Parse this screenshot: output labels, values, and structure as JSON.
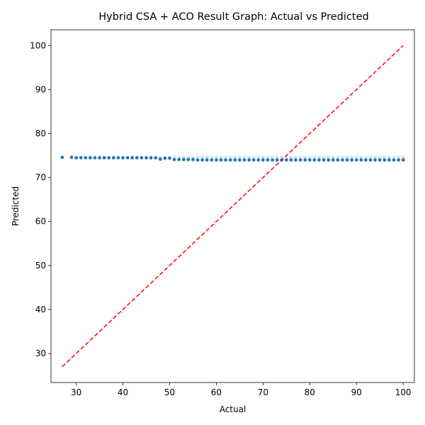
{
  "chart_data": {
    "type": "scatter",
    "title": "Hybrid CSA + ACO Result Graph: Actual vs Predicted",
    "xlabel": "Actual",
    "ylabel": "Predicted",
    "xlim": [
      24.6,
      102.4
    ],
    "ylim": [
      23.4,
      103.6
    ],
    "xticks": [
      30,
      40,
      50,
      60,
      70,
      80,
      90,
      100
    ],
    "yticks": [
      30,
      40,
      50,
      60,
      70,
      80,
      90,
      100
    ],
    "grid": false,
    "reference_line": {
      "from": [
        27,
        27
      ],
      "to": [
        100,
        100
      ],
      "style": "dashed",
      "color": "#ff0000"
    },
    "series": [
      {
        "color": "#1f77b4",
        "points": [
          [
            27,
            74.6
          ],
          [
            29,
            74.6
          ],
          [
            30,
            74.5
          ],
          [
            31,
            74.5
          ],
          [
            32,
            74.5
          ],
          [
            33,
            74.5
          ],
          [
            34,
            74.5
          ],
          [
            35,
            74.5
          ],
          [
            36,
            74.5
          ],
          [
            37,
            74.5
          ],
          [
            38,
            74.5
          ],
          [
            39,
            74.5
          ],
          [
            40,
            74.5
          ],
          [
            41,
            74.5
          ],
          [
            42,
            74.5
          ],
          [
            43,
            74.5
          ],
          [
            44,
            74.5
          ],
          [
            45,
            74.5
          ],
          [
            46,
            74.5
          ],
          [
            47,
            74.5
          ],
          [
            48,
            74.2
          ],
          [
            49,
            74.4
          ],
          [
            50,
            74.4
          ],
          [
            51,
            74.1
          ],
          [
            52,
            74.1
          ],
          [
            53,
            74.1
          ],
          [
            54,
            74.1
          ],
          [
            55,
            74.1
          ],
          [
            56,
            74.0
          ],
          [
            57,
            74.0
          ],
          [
            58,
            74.0
          ],
          [
            59,
            74.0
          ],
          [
            60,
            74.0
          ],
          [
            61,
            74.0
          ],
          [
            62,
            74.0
          ],
          [
            63,
            74.0
          ],
          [
            64,
            74.0
          ],
          [
            65,
            74.0
          ],
          [
            66,
            74.0
          ],
          [
            67,
            74.0
          ],
          [
            68,
            74.0
          ],
          [
            69,
            74.0
          ],
          [
            70,
            74.0
          ],
          [
            71,
            74.0
          ],
          [
            72,
            74.0
          ],
          [
            73,
            74.0
          ],
          [
            74,
            74.0
          ],
          [
            75,
            74.0
          ],
          [
            76,
            74.0
          ],
          [
            77,
            74.0
          ],
          [
            78,
            74.0
          ],
          [
            79,
            74.0
          ],
          [
            80,
            74.0
          ],
          [
            81,
            74.0
          ],
          [
            82,
            74.0
          ],
          [
            83,
            74.0
          ],
          [
            84,
            74.0
          ],
          [
            85,
            74.0
          ],
          [
            86,
            74.0
          ],
          [
            87,
            74.0
          ],
          [
            88,
            74.0
          ],
          [
            89,
            74.0
          ],
          [
            90,
            74.0
          ],
          [
            91,
            74.0
          ],
          [
            92,
            74.0
          ],
          [
            93,
            74.0
          ],
          [
            94,
            74.0
          ],
          [
            95,
            74.0
          ],
          [
            96,
            74.0
          ],
          [
            97,
            74.0
          ],
          [
            98,
            74.0
          ],
          [
            99,
            74.0
          ],
          [
            100,
            74.0
          ]
        ],
        "faint_points": [
          [
            48,
            74.6
          ],
          [
            50,
            74.6
          ],
          [
            51,
            74.6
          ],
          [
            52,
            74.6
          ],
          [
            53,
            74.6
          ],
          [
            54,
            74.6
          ],
          [
            55,
            74.6
          ],
          [
            56,
            74.6
          ],
          [
            57,
            74.6
          ],
          [
            58,
            74.6
          ],
          [
            59,
            74.6
          ],
          [
            60,
            74.6
          ],
          [
            61,
            74.6
          ],
          [
            62,
            74.6
          ],
          [
            63,
            74.6
          ],
          [
            64,
            74.6
          ],
          [
            65,
            74.6
          ],
          [
            66,
            74.6
          ],
          [
            67,
            74.6
          ],
          [
            68,
            74.6
          ],
          [
            69,
            74.6
          ],
          [
            70,
            74.6
          ],
          [
            71,
            74.6
          ],
          [
            72,
            74.6
          ],
          [
            73,
            74.6
          ],
          [
            74,
            74.6
          ],
          [
            75,
            74.6
          ],
          [
            76,
            74.6
          ],
          [
            77,
            74.6
          ],
          [
            78,
            74.6
          ],
          [
            79,
            74.6
          ],
          [
            80,
            74.6
          ],
          [
            81,
            74.6
          ],
          [
            82,
            74.6
          ],
          [
            83,
            74.6
          ],
          [
            84,
            74.6
          ],
          [
            85,
            74.6
          ],
          [
            86,
            74.6
          ],
          [
            87,
            74.6
          ],
          [
            88,
            74.6
          ],
          [
            89,
            74.6
          ],
          [
            90,
            74.6
          ],
          [
            91,
            74.6
          ],
          [
            92,
            74.6
          ],
          [
            93,
            74.6
          ],
          [
            94,
            74.6
          ],
          [
            95,
            74.6
          ],
          [
            96,
            74.6
          ],
          [
            97,
            74.6
          ],
          [
            98,
            74.6
          ],
          [
            99,
            74.6
          ],
          [
            100,
            74.6
          ],
          [
            52,
            74.3
          ],
          [
            55,
            74.3
          ],
          [
            58,
            74.3
          ],
          [
            61,
            74.3
          ],
          [
            64,
            74.3
          ],
          [
            67,
            74.3
          ],
          [
            70,
            74.3
          ],
          [
            73,
            74.3
          ],
          [
            76,
            74.3
          ],
          [
            79,
            74.3
          ],
          [
            82,
            74.3
          ],
          [
            85,
            74.3
          ],
          [
            88,
            74.3
          ],
          [
            91,
            74.3
          ],
          [
            94,
            74.3
          ],
          [
            97,
            74.3
          ],
          [
            100,
            74.3
          ]
        ]
      }
    ]
  }
}
